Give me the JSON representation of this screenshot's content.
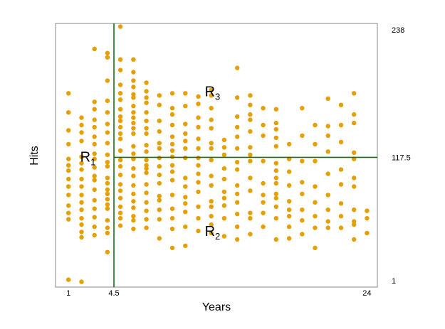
{
  "chart_data": {
    "type": "scatter",
    "xlabel": "Years",
    "ylabel": "Hits",
    "xlim": [
      0,
      24.8
    ],
    "ylim": [
      -5,
      244
    ],
    "x_ticks": [
      {
        "value": 1,
        "label": "1"
      },
      {
        "value": 4.5,
        "label": "4.5"
      },
      {
        "value": 24,
        "label": "24"
      }
    ],
    "y_ticks": [
      {
        "value": 238,
        "label": "238"
      },
      {
        "value": 117.5,
        "label": "117.5"
      },
      {
        "value": 1,
        "label": "1"
      }
    ],
    "split_lines": [
      {
        "axis": "x",
        "value": 4.5,
        "color": "#1a6b1a"
      },
      {
        "axis": "y",
        "value": 117.5,
        "color": "#1a6b1a",
        "x_from": 4.5
      }
    ],
    "regions": [
      {
        "base": "R",
        "sub": "1",
        "x": 1.9,
        "y": 118
      },
      {
        "base": "R",
        "sub": "2",
        "x": 11.5,
        "y": 48
      },
      {
        "base": "R",
        "sub": "3",
        "x": 11.5,
        "y": 180
      }
    ],
    "point_color": "#e69f00",
    "points": [
      [
        1,
        2
      ],
      [
        1,
        59
      ],
      [
        1,
        65
      ],
      [
        1,
        72
      ],
      [
        1,
        82
      ],
      [
        1,
        90
      ],
      [
        1,
        97
      ],
      [
        1,
        105
      ],
      [
        1,
        110
      ],
      [
        1,
        116
      ],
      [
        1,
        130
      ],
      [
        1,
        143
      ],
      [
        1,
        160
      ],
      [
        1,
        178
      ],
      [
        2,
        0
      ],
      [
        2,
        42
      ],
      [
        2,
        47
      ],
      [
        2,
        54
      ],
      [
        2,
        60
      ],
      [
        2,
        68
      ],
      [
        2,
        75
      ],
      [
        2,
        82
      ],
      [
        2,
        90
      ],
      [
        2,
        97
      ],
      [
        2,
        106
      ],
      [
        2,
        112
      ],
      [
        2,
        118
      ],
      [
        2,
        133
      ],
      [
        2,
        141
      ],
      [
        2,
        148
      ],
      [
        2,
        155
      ],
      [
        3,
        44
      ],
      [
        3,
        52
      ],
      [
        3,
        61
      ],
      [
        3,
        69
      ],
      [
        3,
        77
      ],
      [
        3,
        87
      ],
      [
        3,
        96
      ],
      [
        3,
        100
      ],
      [
        3,
        108
      ],
      [
        3,
        116
      ],
      [
        3,
        121
      ],
      [
        3,
        130
      ],
      [
        3,
        137
      ],
      [
        3,
        146
      ],
      [
        3,
        153
      ],
      [
        3,
        163
      ],
      [
        3,
        170
      ],
      [
        3,
        220
      ],
      [
        4,
        28
      ],
      [
        4,
        46
      ],
      [
        4,
        51
      ],
      [
        4,
        58
      ],
      [
        4,
        69
      ],
      [
        4,
        73
      ],
      [
        4,
        78
      ],
      [
        4,
        83
      ],
      [
        4,
        87
      ],
      [
        4,
        93
      ],
      [
        4,
        98
      ],
      [
        4,
        109
      ],
      [
        4,
        113
      ],
      [
        4,
        120
      ],
      [
        4,
        131
      ],
      [
        4,
        141
      ],
      [
        4,
        149
      ],
      [
        4,
        160
      ],
      [
        4,
        171
      ],
      [
        4,
        190
      ],
      [
        4,
        212
      ],
      [
        4,
        216
      ],
      [
        5,
        53
      ],
      [
        5,
        60
      ],
      [
        5,
        65
      ],
      [
        5,
        71
      ],
      [
        5,
        79
      ],
      [
        5,
        86
      ],
      [
        5,
        92
      ],
      [
        5,
        101
      ],
      [
        5,
        109
      ],
      [
        5,
        115
      ],
      [
        5,
        124
      ],
      [
        5,
        135
      ],
      [
        5,
        140
      ],
      [
        5,
        146
      ],
      [
        5,
        152
      ],
      [
        5,
        156
      ],
      [
        5,
        163
      ],
      [
        5,
        172
      ],
      [
        5,
        178
      ],
      [
        5,
        186
      ],
      [
        5,
        200
      ],
      [
        5,
        210
      ],
      [
        5,
        241
      ],
      [
        6,
        50
      ],
      [
        6,
        58
      ],
      [
        6,
        62
      ],
      [
        6,
        70
      ],
      [
        6,
        76
      ],
      [
        6,
        83
      ],
      [
        6,
        91
      ],
      [
        6,
        100
      ],
      [
        6,
        107
      ],
      [
        6,
        116
      ],
      [
        6,
        121
      ],
      [
        6,
        128
      ],
      [
        6,
        140
      ],
      [
        6,
        145
      ],
      [
        6,
        150
      ],
      [
        6,
        155
      ],
      [
        6,
        160
      ],
      [
        6,
        166
      ],
      [
        6,
        174
      ],
      [
        6,
        177
      ],
      [
        6,
        184
      ],
      [
        6,
        190
      ],
      [
        6,
        198
      ],
      [
        6,
        210
      ],
      [
        7,
        51
      ],
      [
        7,
        59
      ],
      [
        7,
        67
      ],
      [
        7,
        75
      ],
      [
        7,
        84
      ],
      [
        7,
        92
      ],
      [
        7,
        103
      ],
      [
        7,
        107
      ],
      [
        7,
        110
      ],
      [
        7,
        115
      ],
      [
        7,
        123
      ],
      [
        7,
        129
      ],
      [
        7,
        140
      ],
      [
        7,
        145
      ],
      [
        7,
        152
      ],
      [
        7,
        160
      ],
      [
        7,
        169
      ],
      [
        7,
        174
      ],
      [
        7,
        180
      ],
      [
        7,
        188
      ],
      [
        8,
        41
      ],
      [
        8,
        59
      ],
      [
        8,
        68
      ],
      [
        8,
        77
      ],
      [
        8,
        81
      ],
      [
        8,
        93
      ],
      [
        8,
        101
      ],
      [
        8,
        109
      ],
      [
        8,
        117
      ],
      [
        8,
        126
      ],
      [
        8,
        131
      ],
      [
        8,
        142
      ],
      [
        8,
        152
      ],
      [
        8,
        167
      ],
      [
        8,
        176
      ],
      [
        9,
        32
      ],
      [
        9,
        50
      ],
      [
        9,
        60
      ],
      [
        9,
        69
      ],
      [
        9,
        82
      ],
      [
        9,
        96
      ],
      [
        9,
        104
      ],
      [
        9,
        110
      ],
      [
        9,
        118
      ],
      [
        9,
        124
      ],
      [
        9,
        130
      ],
      [
        9,
        137
      ],
      [
        9,
        148
      ],
      [
        9,
        158
      ],
      [
        9,
        164
      ],
      [
        9,
        178
      ],
      [
        10,
        34
      ],
      [
        10,
        52
      ],
      [
        10,
        66
      ],
      [
        10,
        74
      ],
      [
        10,
        80
      ],
      [
        10,
        90
      ],
      [
        10,
        98
      ],
      [
        10,
        117
      ],
      [
        10,
        126
      ],
      [
        10,
        133
      ],
      [
        10,
        140
      ],
      [
        10,
        149
      ],
      [
        10,
        166
      ],
      [
        10,
        178
      ],
      [
        11,
        48
      ],
      [
        11,
        60
      ],
      [
        11,
        71
      ],
      [
        11,
        85
      ],
      [
        11,
        94
      ],
      [
        11,
        102
      ],
      [
        11,
        110
      ],
      [
        11,
        117
      ],
      [
        11,
        126
      ],
      [
        11,
        135
      ],
      [
        11,
        146
      ],
      [
        11,
        155
      ],
      [
        11,
        168
      ],
      [
        11,
        175
      ],
      [
        12,
        46
      ],
      [
        12,
        54
      ],
      [
        12,
        62
      ],
      [
        12,
        71
      ],
      [
        12,
        76
      ],
      [
        12,
        91
      ],
      [
        12,
        100
      ],
      [
        12,
        115
      ],
      [
        12,
        126
      ],
      [
        12,
        131
      ],
      [
        12,
        145
      ],
      [
        12,
        153
      ],
      [
        12,
        164
      ],
      [
        12,
        176
      ],
      [
        12,
        181
      ],
      [
        13,
        43
      ],
      [
        13,
        60
      ],
      [
        13,
        72
      ],
      [
        13,
        79
      ],
      [
        13,
        85
      ],
      [
        13,
        97
      ],
      [
        13,
        107
      ],
      [
        13,
        120
      ],
      [
        13,
        127
      ],
      [
        13,
        134
      ],
      [
        14,
        40
      ],
      [
        14,
        52
      ],
      [
        14,
        64
      ],
      [
        14,
        75
      ],
      [
        14,
        83
      ],
      [
        14,
        91
      ],
      [
        14,
        106
      ],
      [
        14,
        113
      ],
      [
        14,
        126
      ],
      [
        14,
        137
      ],
      [
        14,
        146
      ],
      [
        14,
        156
      ],
      [
        14,
        174
      ],
      [
        14,
        202
      ],
      [
        15,
        45
      ],
      [
        15,
        60
      ],
      [
        15,
        65
      ],
      [
        15,
        86
      ],
      [
        15,
        98
      ],
      [
        15,
        114
      ],
      [
        15,
        120
      ],
      [
        15,
        127
      ],
      [
        15,
        142
      ],
      [
        15,
        153
      ],
      [
        15,
        158
      ],
      [
        15,
        167
      ],
      [
        15,
        176
      ],
      [
        16,
        52
      ],
      [
        16,
        65
      ],
      [
        16,
        75
      ],
      [
        16,
        82
      ],
      [
        16,
        93
      ],
      [
        16,
        114
      ],
      [
        16,
        138
      ],
      [
        16,
        148
      ],
      [
        16,
        164
      ],
      [
        17,
        40
      ],
      [
        17,
        60
      ],
      [
        17,
        71
      ],
      [
        17,
        79
      ],
      [
        17,
        83
      ],
      [
        17,
        93
      ],
      [
        17,
        98
      ],
      [
        17,
        105
      ],
      [
        17,
        112
      ],
      [
        17,
        128
      ],
      [
        17,
        136
      ],
      [
        17,
        144
      ],
      [
        17,
        150
      ],
      [
        17,
        163
      ],
      [
        18,
        41
      ],
      [
        18,
        52
      ],
      [
        18,
        62
      ],
      [
        18,
        68
      ],
      [
        18,
        76
      ],
      [
        18,
        91
      ],
      [
        18,
        104
      ],
      [
        18,
        116
      ],
      [
        18,
        130
      ],
      [
        19,
        45
      ],
      [
        19,
        58
      ],
      [
        19,
        68
      ],
      [
        19,
        83
      ],
      [
        19,
        94
      ],
      [
        19,
        114
      ],
      [
        19,
        138
      ],
      [
        19,
        164
      ],
      [
        20,
        32
      ],
      [
        20,
        51
      ],
      [
        20,
        62
      ],
      [
        20,
        75
      ],
      [
        20,
        90
      ],
      [
        20,
        114
      ],
      [
        20,
        130
      ],
      [
        20,
        148
      ],
      [
        21,
        51
      ],
      [
        21,
        57
      ],
      [
        21,
        68
      ],
      [
        21,
        82
      ],
      [
        21,
        102
      ],
      [
        21,
        123
      ],
      [
        21,
        138
      ],
      [
        21,
        147
      ],
      [
        21,
        173
      ],
      [
        22,
        51
      ],
      [
        22,
        62
      ],
      [
        22,
        74
      ],
      [
        22,
        92
      ],
      [
        22,
        106
      ],
      [
        22,
        132
      ],
      [
        22,
        148
      ],
      [
        22,
        167
      ],
      [
        23,
        40
      ],
      [
        23,
        54
      ],
      [
        23,
        57
      ],
      [
        23,
        68
      ],
      [
        23,
        90
      ],
      [
        23,
        98
      ],
      [
        23,
        116
      ],
      [
        23,
        122
      ],
      [
        23,
        150
      ],
      [
        23,
        158
      ],
      [
        23,
        178
      ],
      [
        24,
        46
      ],
      [
        24,
        60
      ],
      [
        24,
        67
      ]
    ]
  }
}
